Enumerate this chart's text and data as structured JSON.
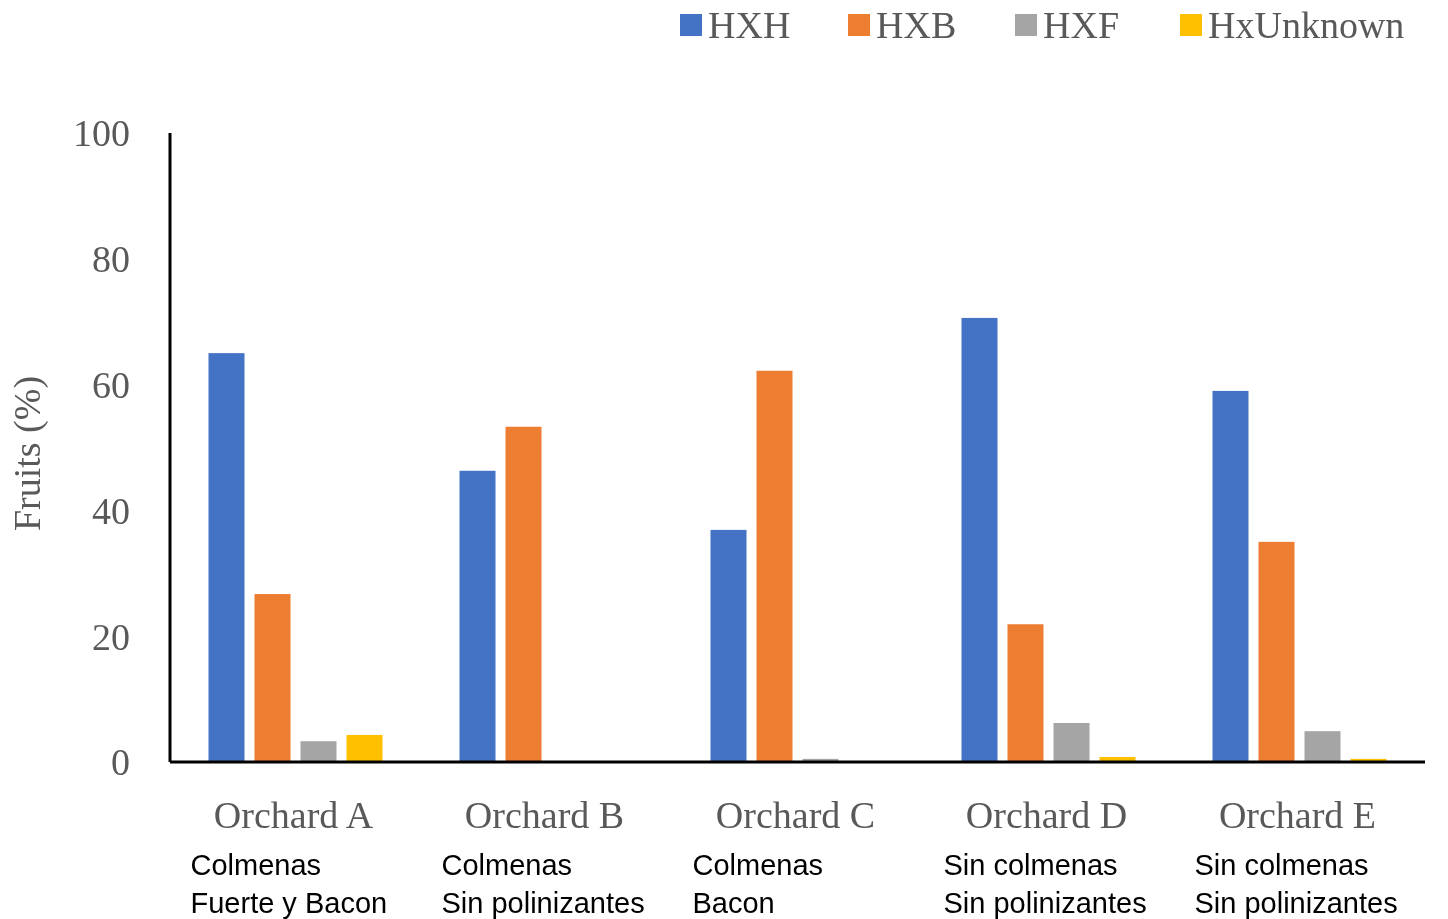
{
  "chart_data": {
    "type": "bar",
    "ylabel": "Fruits (%)",
    "categories": [
      "Orchard A\nColmenas\nFuerte y Bacon",
      "Orchard B\nColmenas\nSin polinizantes",
      "Orchard C\nColmenas\nBacon",
      "Orchard D\nSin colmenas\nSin polinizantes",
      "Orchard E\nSin colmenas\nSin polinizantes"
    ],
    "series": [
      {
        "name": "HXH",
        "color": "#4472c4",
        "values": [
          65.0,
          46.3,
          36.9,
          70.6,
          59.0
        ]
      },
      {
        "name": "HXB",
        "color": "#ed7d31",
        "values": [
          26.7,
          53.3,
          62.2,
          21.9,
          35.0
        ]
      },
      {
        "name": "HXF",
        "color": "#a5a5a5",
        "values": [
          3.3,
          0,
          0.5,
          6.2,
          4.9
        ]
      },
      {
        "name": "HxUnknown",
        "color": "#ffc000",
        "values": [
          4.3,
          0,
          0,
          0.8,
          0.5
        ]
      }
    ],
    "ylim": [
      0,
      100
    ],
    "yticks": [
      0,
      20,
      40,
      60,
      80,
      100
    ],
    "grid": false,
    "legend": "top right"
  }
}
